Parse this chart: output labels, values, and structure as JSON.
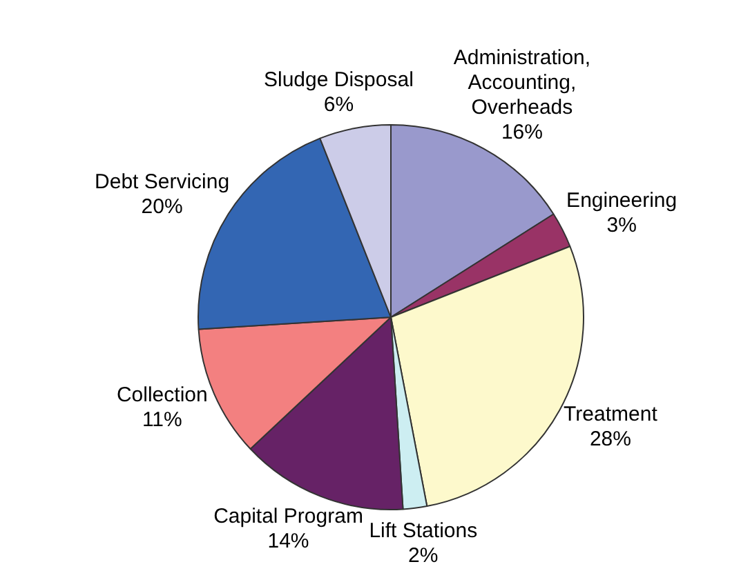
{
  "chart_data": {
    "type": "pie",
    "categories": [
      "Administration, Accounting, Overheads",
      "Engineering",
      "Treatment",
      "Lift Stations",
      "Capital Program",
      "Collection",
      "Debt Servicing",
      "Sludge Disposal"
    ],
    "values": [
      16,
      3,
      28,
      2,
      14,
      11,
      20,
      6
    ],
    "colors": [
      "#9999cc",
      "#993366",
      "#fdf9cc",
      "#cdeef2",
      "#662266",
      "#f38080",
      "#3366b3",
      "#cccce8"
    ],
    "value_labels": [
      "16%",
      "3%",
      "28%",
      "2%",
      "14%",
      "11%",
      "20%",
      "6%"
    ],
    "legend": false
  }
}
